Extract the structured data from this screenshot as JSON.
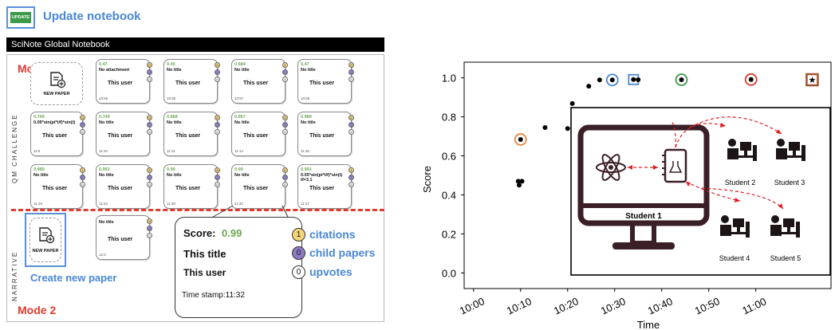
{
  "update": {
    "button_label": "UPDATE",
    "label": "Update notebook"
  },
  "notebook": {
    "title": "SciNote Global Notebook"
  },
  "mode1": "Mode 1",
  "mode2": "Mode 2",
  "section_qm": "QM CHALLENGE",
  "section_narrative": "NARRATIVE",
  "new_paper_label": "NEW PAPER",
  "create_new_paper": "Create new paper",
  "cards": [
    {
      "score": "0.47",
      "title": "No attachment",
      "user": "This user",
      "time": "10:55",
      "c": "0",
      "ch": "",
      "u": "0"
    },
    {
      "score": "0.45",
      "title": "No title",
      "user": "This user",
      "time": "10:55",
      "c": "0",
      "ch": "",
      "u": "0"
    },
    {
      "score": "0.684",
      "title": "No title",
      "user": "This user",
      "time": "10:57",
      "c": "1",
      "ch": "",
      "u": "0"
    },
    {
      "score": "0.47",
      "title": "No title",
      "user": "This user",
      "time": "10:59",
      "c": "0",
      "ch": "",
      "u": "0"
    },
    {
      "score": "0.745",
      "title": "0.05*sin(pi*t/f)*sin(t)",
      "user": "This user",
      "time": "11:5",
      "c": "0",
      "ch": "",
      "u": "0"
    },
    {
      "score": "0.740",
      "title": "No title",
      "user": "This user",
      "time": "11:10",
      "c": "0",
      "ch": "",
      "u": "0"
    },
    {
      "score": "0.868",
      "title": "No title",
      "user": "This user",
      "time": "11:11",
      "c": "0",
      "ch": "",
      "u": "0"
    },
    {
      "score": "0.957",
      "title": "No title",
      "user": "This user",
      "time": "11:14",
      "c": "0",
      "ch": "",
      "u": "0"
    },
    {
      "score": "0.989",
      "title": "No title",
      "user": "This user",
      "time": "11:16",
      "c": "0",
      "ch": "",
      "u": "0"
    },
    {
      "score": "0.989",
      "title": "No title",
      "user": "This user",
      "time": "11:19",
      "c": "1",
      "ch": "",
      "u": "0"
    },
    {
      "score": "0.991",
      "title": "No title",
      "user": "This user",
      "time": "11:24",
      "c": "0",
      "ch": "",
      "u": "0"
    },
    {
      "score": "0.99",
      "title": "No title",
      "user": "This user",
      "time": "11:28",
      "c": "0",
      "ch": "",
      "u": "0"
    },
    {
      "score": "0.99",
      "title": "No title",
      "user": "This user",
      "time": "11:32",
      "c": "0",
      "ch": "",
      "u": "0"
    },
    {
      "score": "0.991",
      "title": "0.05*sin(pi*t/f)*sin(t) tf=3.1",
      "user": "This user",
      "time": "11:47",
      "c": "1",
      "ch": "",
      "u": "0"
    }
  ],
  "narrative_card": {
    "title": "No title",
    "user": "This user",
    "time": "12:3",
    "c": "0",
    "u": "0"
  },
  "zoom": {
    "score_label": "Score:",
    "score_value": "0.99",
    "title": "This title",
    "user": "This user",
    "timestamp": "Time stamp:11:32"
  },
  "legend": [
    {
      "value": "1",
      "label": "citations",
      "color": "#f5d77a"
    },
    {
      "value": "0",
      "label": "child papers",
      "color": "#8e7cc3"
    },
    {
      "value": "0",
      "label": "upvotes",
      "color": "#ffffff"
    }
  ],
  "chart_data": {
    "type": "scatter",
    "xlabel": "Time",
    "ylabel": "Score",
    "xticks": [
      "10:00",
      "10:10",
      "10:20",
      "10:30",
      "10:40",
      "10:50",
      "11:00"
    ],
    "yticks": [
      "0.0",
      "0.2",
      "0.4",
      "0.6",
      "0.8",
      "1.0"
    ],
    "ylim": [
      -0.08,
      1.08
    ],
    "points": [
      {
        "x": 9.5,
        "y": 0.47
      },
      {
        "x": 9.7,
        "y": 0.45
      },
      {
        "x": 10.3,
        "y": 0.47
      },
      {
        "x": 10.0,
        "y": 0.684,
        "mark": "orange-circle"
      },
      {
        "x": 15.2,
        "y": 0.745
      },
      {
        "x": 20.0,
        "y": 0.74
      },
      {
        "x": 21.0,
        "y": 0.868
      },
      {
        "x": 24.5,
        "y": 0.957
      },
      {
        "x": 26.8,
        "y": 0.989
      },
      {
        "x": 29.5,
        "y": 0.989,
        "mark": "blue-circle"
      },
      {
        "x": 34.0,
        "y": 0.991,
        "mark": "blue-square"
      },
      {
        "x": 35.0,
        "y": 0.99
      },
      {
        "x": 44.2,
        "y": 0.99,
        "mark": "green-circle"
      },
      {
        "x": 59.0,
        "y": 0.991,
        "mark": "red-circle"
      },
      {
        "x": 72.0,
        "y": 0.99,
        "mark": "brown-star"
      }
    ]
  },
  "inset": {
    "student1": "Student 1",
    "students": [
      "Student 2",
      "Student 3",
      "Student 4",
      "Student 5"
    ]
  }
}
